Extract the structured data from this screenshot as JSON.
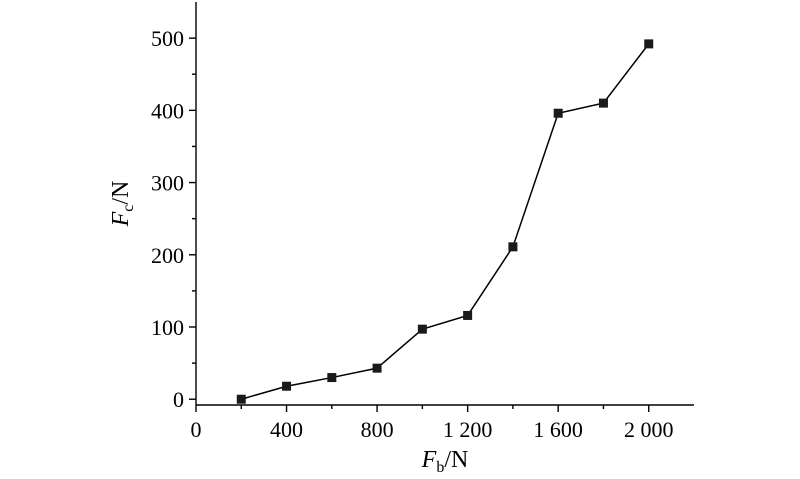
{
  "chart_data": {
    "type": "line",
    "x": [
      200,
      400,
      600,
      800,
      1000,
      1200,
      1400,
      1600,
      1800,
      2000
    ],
    "series": [
      {
        "values": [
          0,
          18,
          30,
          43,
          97,
          116,
          211,
          396,
          410,
          492
        ]
      }
    ],
    "xlabel": {
      "symbol": "F",
      "subscript": "b",
      "unit": "/N"
    },
    "ylabel": {
      "symbol": "F",
      "subscript": "c",
      "unit": "/N"
    },
    "xlim": [
      0,
      2200
    ],
    "ylim": [
      -8,
      550
    ],
    "xticks": [
      0,
      400,
      800,
      1200,
      1600,
      2000
    ],
    "xtick_labels": [
      "0",
      "400",
      "800",
      "1 200",
      "1 600",
      "2 000"
    ],
    "xticks_minor": [
      200,
      600,
      1000,
      1400,
      1800
    ],
    "yticks": [
      0,
      100,
      200,
      300,
      400,
      500
    ],
    "ytick_labels": [
      "0",
      "100",
      "200",
      "300",
      "400",
      "500"
    ],
    "yticks_minor": [
      50,
      150,
      250,
      350,
      450
    ],
    "grid": false,
    "marker": "square",
    "color": "#000000"
  }
}
